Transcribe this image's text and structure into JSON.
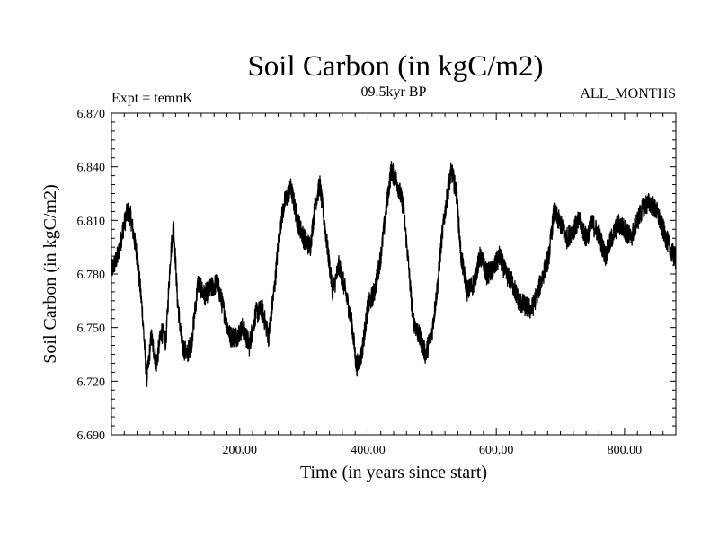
{
  "chart_data": {
    "type": "line",
    "title": "Soil Carbon (in kgC/m2)",
    "subtitle_left": "Expt = temnK",
    "subtitle_center": "09.5kyr BP",
    "subtitle_right": "ALL_MONTHS",
    "xlabel": "Time (in years since start)",
    "ylabel": "Soil Carbon (in kgC/m2)",
    "xlim": [
      0,
      880
    ],
    "ylim": [
      6.69,
      6.87
    ],
    "x_ticks": [
      200,
      400,
      600,
      800
    ],
    "x_tick_labels": [
      "200.00",
      "400.00",
      "600.00",
      "800.00"
    ],
    "y_ticks": [
      6.69,
      6.72,
      6.75,
      6.78,
      6.81,
      6.84,
      6.87
    ],
    "y_tick_labels": [
      "6.690",
      "6.720",
      "6.750",
      "6.780",
      "6.810",
      "6.840",
      "6.870"
    ],
    "grid": false,
    "series": [
      {
        "name": "Soil Carbon",
        "color": "#000000",
        "noise_amplitude": 0.006,
        "x": [
          0,
          10,
          18,
          25,
          30,
          40,
          48,
          55,
          62,
          70,
          78,
          85,
          92,
          97,
          103,
          110,
          118,
          125,
          135,
          145,
          155,
          165,
          175,
          185,
          195,
          205,
          215,
          225,
          235,
          245,
          255,
          262,
          270,
          280,
          290,
          300,
          310,
          318,
          325,
          335,
          345,
          355,
          365,
          375,
          382,
          390,
          400,
          410,
          420,
          428,
          436,
          445,
          455,
          462,
          470,
          480,
          490,
          500,
          508,
          515,
          522,
          530,
          538,
          545,
          555,
          565,
          575,
          585,
          595,
          605,
          615,
          625,
          635,
          645,
          655,
          665,
          675,
          682,
          690,
          700,
          710,
          720,
          730,
          740,
          750,
          760,
          770,
          780,
          790,
          800,
          810,
          820,
          830,
          840,
          850,
          860,
          870,
          880
        ],
        "y": [
          6.782,
          6.79,
          6.805,
          6.815,
          6.812,
          6.79,
          6.76,
          6.72,
          6.745,
          6.73,
          6.748,
          6.742,
          6.79,
          6.808,
          6.765,
          6.74,
          6.735,
          6.742,
          6.775,
          6.768,
          6.772,
          6.775,
          6.76,
          6.745,
          6.745,
          6.75,
          6.74,
          6.758,
          6.76,
          6.745,
          6.775,
          6.805,
          6.82,
          6.828,
          6.81,
          6.8,
          6.795,
          6.82,
          6.83,
          6.8,
          6.77,
          6.785,
          6.77,
          6.752,
          6.728,
          6.735,
          6.762,
          6.77,
          6.79,
          6.815,
          6.838,
          6.832,
          6.818,
          6.79,
          6.755,
          6.745,
          6.735,
          6.748,
          6.772,
          6.8,
          6.82,
          6.838,
          6.825,
          6.79,
          6.77,
          6.775,
          6.79,
          6.78,
          6.782,
          6.79,
          6.78,
          6.775,
          6.765,
          6.762,
          6.76,
          6.77,
          6.782,
          6.79,
          6.815,
          6.808,
          6.8,
          6.805,
          6.81,
          6.8,
          6.808,
          6.802,
          6.79,
          6.8,
          6.808,
          6.805,
          6.8,
          6.81,
          6.818,
          6.82,
          6.815,
          6.805,
          6.795,
          6.788
        ]
      }
    ]
  }
}
